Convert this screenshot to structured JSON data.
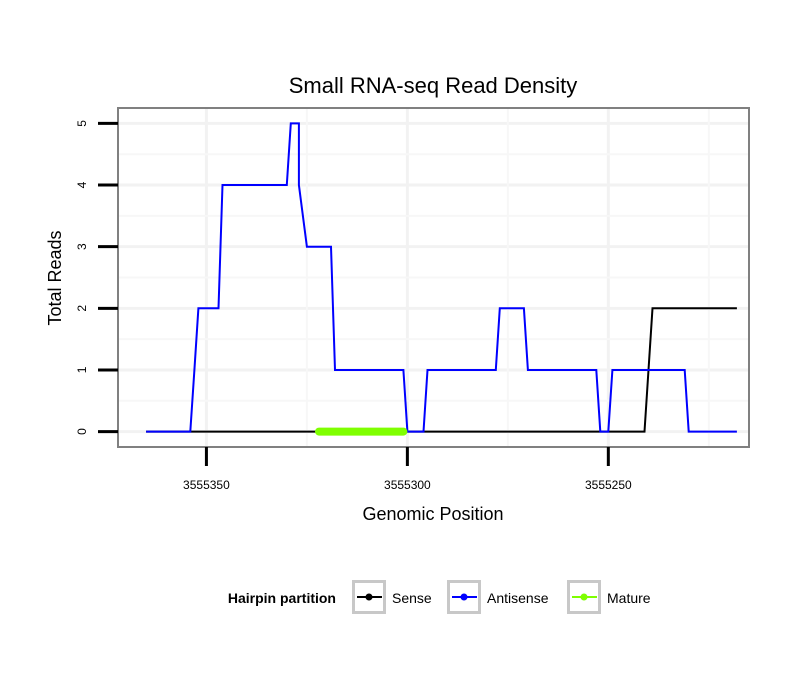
{
  "chart_data": {
    "type": "line",
    "title": "Small RNA-seq Read Density",
    "xlabel": "Genomic Position",
    "ylabel": "Total Reads",
    "x_reversed": true,
    "xlim": [
      3555372,
      3555215
    ],
    "ylim": [
      -0.25,
      5.25
    ],
    "x_ticks": [
      3555350,
      3555300,
      3555250
    ],
    "x_tick_labels": [
      "3555350",
      "3555300",
      "3555250"
    ],
    "y_ticks": [
      0,
      1,
      2,
      3,
      4,
      5
    ],
    "y_tick_labels": [
      "0",
      "1",
      "2",
      "3",
      "4",
      "5"
    ],
    "grid": true,
    "legend": {
      "title": "Hairpin partition",
      "position": "bottom",
      "entries": [
        "Sense",
        "Antisense",
        "Mature"
      ]
    },
    "series": [
      {
        "name": "Sense",
        "color": "#000000",
        "x": [
          3555365,
          3555241,
          3555239,
          3555218
        ],
        "y": [
          0,
          0,
          2,
          2
        ]
      },
      {
        "name": "Antisense",
        "color": "#0000ff",
        "x": [
          3555365,
          3555354,
          3555353,
          3555353,
          3555352,
          3555347,
          3555346,
          3555330,
          3555329,
          3555328,
          3555327,
          3555327,
          3555325,
          3555319,
          3555318,
          3555301,
          3555300,
          3555296,
          3555295,
          3555278,
          3555277,
          3555271,
          3555270,
          3555253,
          3555252,
          3555250,
          3555249,
          3555231,
          3555230,
          3555218
        ],
        "y": [
          0,
          0,
          1,
          1,
          2,
          2,
          4,
          4,
          5,
          5,
          5,
          4,
          3,
          3,
          1,
          1,
          0,
          0,
          1,
          1,
          2,
          2,
          1,
          1,
          0,
          0,
          1,
          1,
          0,
          0
        ]
      },
      {
        "name": "Mature",
        "color": "#7fff00",
        "x": [
          3555322,
          3555301
        ],
        "y": [
          0,
          0
        ]
      }
    ]
  }
}
